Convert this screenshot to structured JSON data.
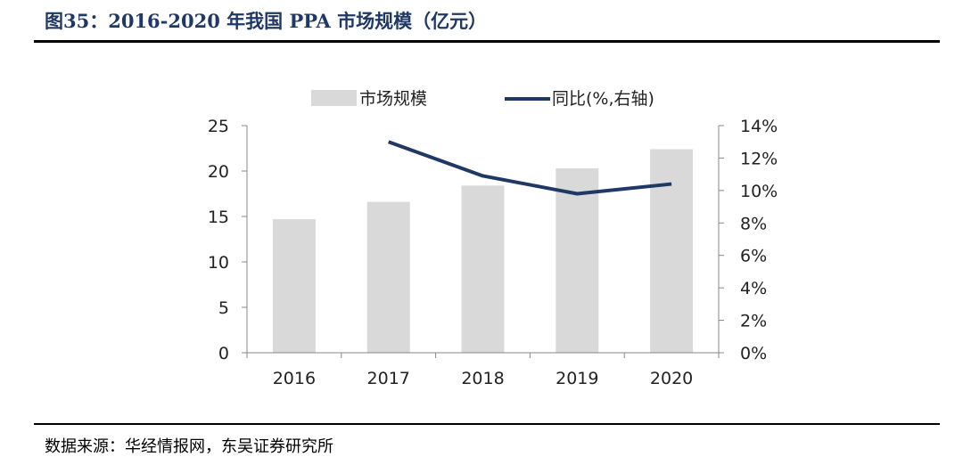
{
  "figure": {
    "title": "图35：2016-2020 年我国 PPA 市场规模（亿元）",
    "source": "数据来源：华经情报网，东吴证券研究所"
  },
  "chart_data": {
    "type": "bar",
    "categories": [
      "2016",
      "2017",
      "2018",
      "2019",
      "2020"
    ],
    "series": [
      {
        "name": "市场规模",
        "type": "bar",
        "axis": "left",
        "values": [
          14.7,
          16.6,
          18.4,
          20.3,
          22.4
        ],
        "color": "#d9d9d9"
      },
      {
        "name": "同比(%,右轴)",
        "type": "line",
        "axis": "right",
        "values": [
          null,
          13.0,
          10.9,
          9.8,
          10.4
        ],
        "color": "#1f3864"
      }
    ],
    "y_left": {
      "ylim": [
        0,
        25
      ],
      "ticks": [
        "0",
        "5",
        "10",
        "15",
        "20",
        "25"
      ]
    },
    "y_right": {
      "ylim": [
        0,
        14
      ],
      "ticks": [
        "0%",
        "2%",
        "4%",
        "6%",
        "8%",
        "10%",
        "12%",
        "14%"
      ]
    },
    "legend_placement": "top-center",
    "grid": false
  }
}
